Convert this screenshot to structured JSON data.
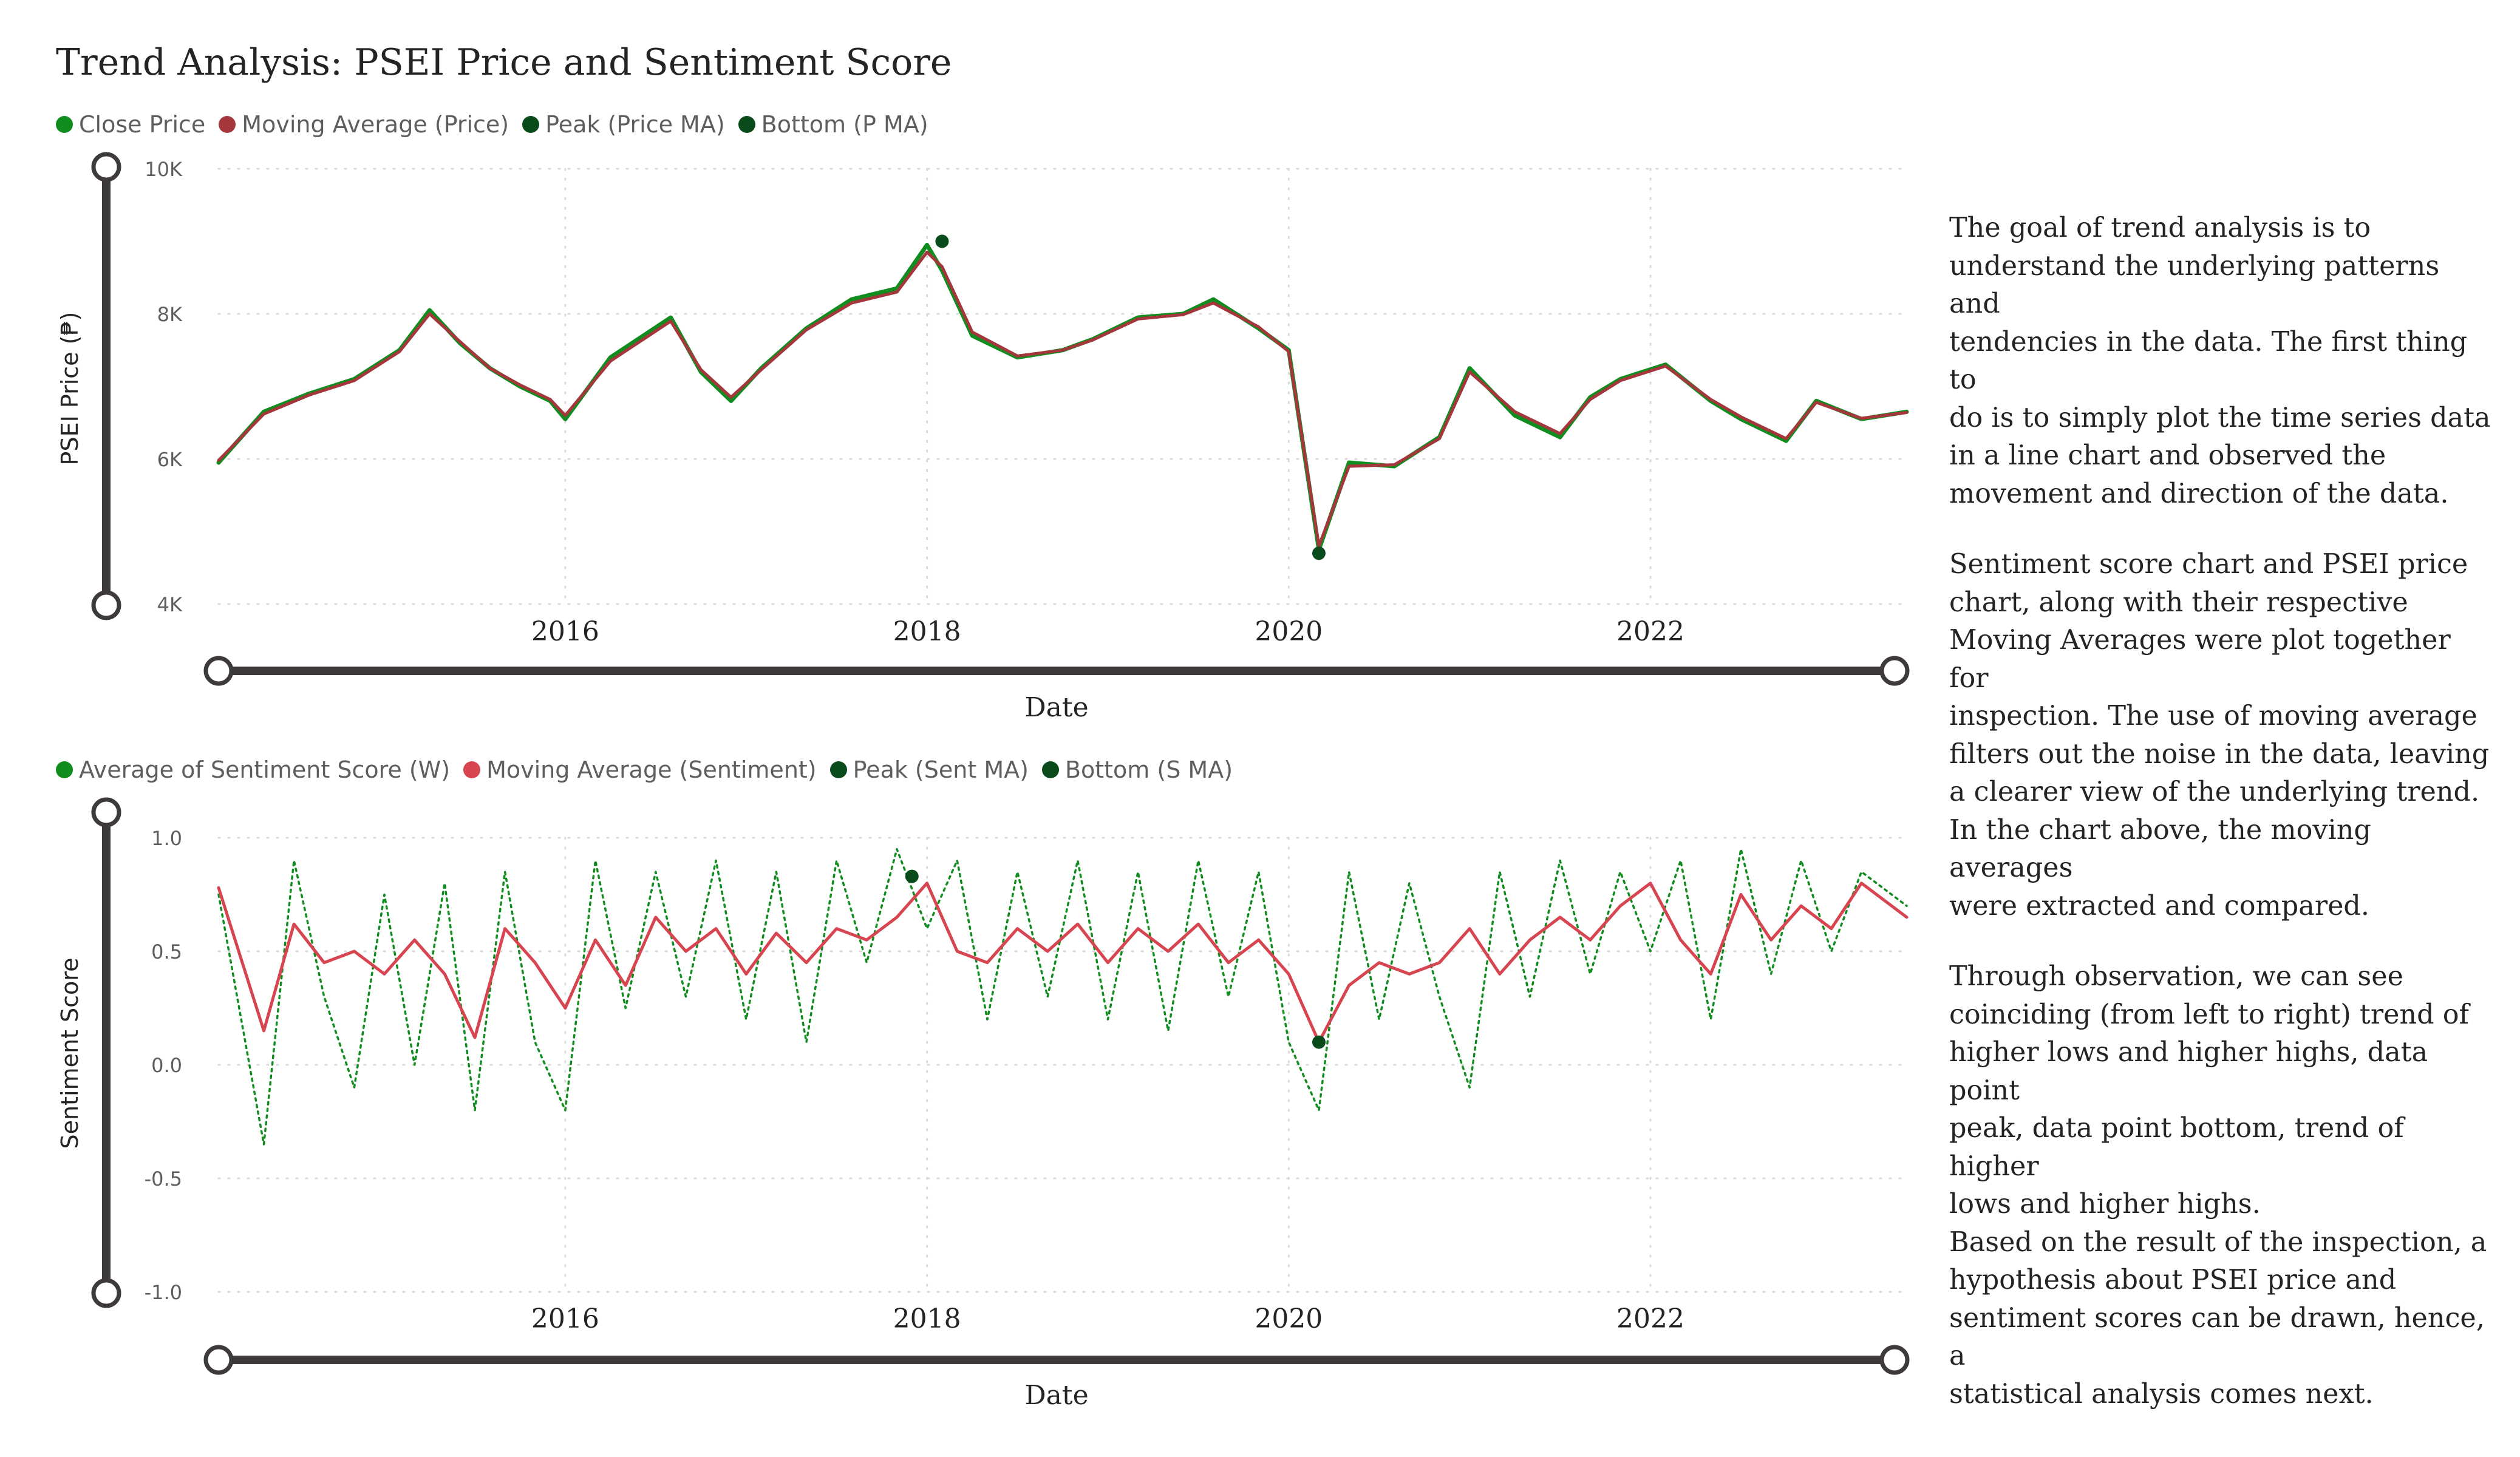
{
  "title": "Trend Analysis: PSEI Price and Sentiment Score",
  "colors": {
    "close_price": "#118d1f",
    "price_ma": "#a4363c",
    "peak": "#0a4b1c",
    "bottom": "#0a4b1c",
    "sentiment": "#118d1f",
    "sentiment_ma": "#d64550",
    "slider": "#3f3a3a"
  },
  "chart_data": [
    {
      "type": "line",
      "title": "",
      "legend": [
        "Close Price",
        "Moving Average (Price)",
        "Peak (Price MA)",
        "Bottom (P MA)"
      ],
      "legend_position": "top-left",
      "xlabel": "Date",
      "ylabel": "PSEI Price (₱)",
      "x_ticks": [
        "2016",
        "2018",
        "2020",
        "2022"
      ],
      "y_ticks": [
        "4K",
        "6K",
        "8K",
        "10K"
      ],
      "xlim": [
        "2014-02",
        "2023-06"
      ],
      "ylim": [
        4000,
        10000
      ],
      "grid": true,
      "series": [
        {
          "name": "Close Price",
          "style": "solid",
          "x": [
            "2014-02",
            "2014-05",
            "2014-08",
            "2014-11",
            "2015-02",
            "2015-04",
            "2015-06",
            "2015-08",
            "2015-10",
            "2015-12",
            "2016-01",
            "2016-04",
            "2016-08",
            "2016-10",
            "2016-12",
            "2017-02",
            "2017-05",
            "2017-08",
            "2017-11",
            "2018-01",
            "2018-02",
            "2018-04",
            "2018-07",
            "2018-10",
            "2018-12",
            "2019-03",
            "2019-06",
            "2019-08",
            "2019-11",
            "2020-01",
            "2020-03",
            "2020-05",
            "2020-08",
            "2020-11",
            "2021-01",
            "2021-04",
            "2021-07",
            "2021-09",
            "2021-11",
            "2022-02",
            "2022-05",
            "2022-07",
            "2022-10",
            "2022-12",
            "2023-03",
            "2023-06"
          ],
          "values": [
            5950,
            6650,
            6900,
            7100,
            7500,
            8050,
            7600,
            7250,
            7000,
            6800,
            6550,
            7400,
            7950,
            7200,
            6800,
            7250,
            7800,
            8200,
            8350,
            8950,
            8600,
            7700,
            7400,
            7500,
            7650,
            7950,
            8000,
            8200,
            7800,
            7500,
            4750,
            5950,
            5900,
            6300,
            7250,
            6600,
            6300,
            6850,
            7100,
            7300,
            6800,
            6550,
            6250,
            6800,
            6550,
            6650
          ]
        },
        {
          "name": "Moving Average (Price)",
          "style": "solid",
          "x": [
            "2014-02",
            "2014-05",
            "2014-08",
            "2014-11",
            "2015-02",
            "2015-04",
            "2015-06",
            "2015-08",
            "2015-10",
            "2015-12",
            "2016-01",
            "2016-04",
            "2016-08",
            "2016-10",
            "2016-12",
            "2017-02",
            "2017-05",
            "2017-08",
            "2017-11",
            "2018-01",
            "2018-02",
            "2018-04",
            "2018-07",
            "2018-10",
            "2018-12",
            "2019-03",
            "2019-06",
            "2019-08",
            "2019-11",
            "2020-01",
            "2020-03",
            "2020-05",
            "2020-08",
            "2020-11",
            "2021-01",
            "2021-04",
            "2021-07",
            "2021-09",
            "2021-11",
            "2022-02",
            "2022-05",
            "2022-07",
            "2022-10",
            "2022-12",
            "2023-03",
            "2023-06"
          ],
          "values": [
            5980,
            6620,
            6880,
            7080,
            7480,
            8000,
            7620,
            7250,
            7020,
            6820,
            6600,
            7350,
            7900,
            7230,
            6850,
            7230,
            7780,
            8150,
            8300,
            8850,
            8650,
            7750,
            7420,
            7500,
            7640,
            7930,
            7990,
            8150,
            7820,
            7480,
            4800,
            5900,
            5920,
            6280,
            7200,
            6650,
            6350,
            6820,
            7080,
            7280,
            6820,
            6580,
            6280,
            6780,
            6560,
            6640
          ]
        },
        {
          "name": "Peak (Price MA)",
          "style": "marker",
          "x": [
            "2018-02"
          ],
          "values": [
            9000
          ]
        },
        {
          "name": "Bottom (P MA)",
          "style": "marker",
          "x": [
            "2020-03"
          ],
          "values": [
            4700
          ]
        }
      ]
    },
    {
      "type": "line",
      "title": "",
      "legend": [
        "Average of Sentiment Score (W)",
        "Moving Average (Sentiment)",
        "Peak (Sent MA)",
        "Bottom (S MA)"
      ],
      "legend_position": "top-left",
      "xlabel": "Date",
      "ylabel": "Sentiment Score",
      "x_ticks": [
        "2016",
        "2018",
        "2020",
        "2022"
      ],
      "y_ticks": [
        "-1.0",
        "-0.5",
        "0.0",
        "0.5",
        "1.0"
      ],
      "xlim": [
        "2014-02",
        "2023-06"
      ],
      "ylim": [
        -1.0,
        1.0
      ],
      "grid": true,
      "series": [
        {
          "name": "Average of Sentiment Score (W)",
          "style": "dotted",
          "x": [
            "2014-02",
            "2014-05",
            "2014-07",
            "2014-09",
            "2014-11",
            "2015-01",
            "2015-03",
            "2015-05",
            "2015-07",
            "2015-09",
            "2015-11",
            "2016-01",
            "2016-03",
            "2016-05",
            "2016-07",
            "2016-09",
            "2016-11",
            "2017-01",
            "2017-03",
            "2017-05",
            "2017-07",
            "2017-09",
            "2017-11",
            "2018-01",
            "2018-03",
            "2018-05",
            "2018-07",
            "2018-09",
            "2018-11",
            "2019-01",
            "2019-03",
            "2019-05",
            "2019-07",
            "2019-09",
            "2019-11",
            "2020-01",
            "2020-03",
            "2020-05",
            "2020-07",
            "2020-09",
            "2020-11",
            "2021-01",
            "2021-03",
            "2021-05",
            "2021-07",
            "2021-09",
            "2021-11",
            "2022-01",
            "2022-03",
            "2022-05",
            "2022-07",
            "2022-09",
            "2022-11",
            "2023-01",
            "2023-03",
            "2023-06"
          ],
          "values": [
            0.75,
            -0.35,
            0.9,
            0.3,
            -0.1,
            0.75,
            0.0,
            0.8,
            -0.2,
            0.85,
            0.1,
            -0.2,
            0.9,
            0.25,
            0.85,
            0.3,
            0.9,
            0.2,
            0.85,
            0.1,
            0.9,
            0.45,
            0.95,
            0.6,
            0.9,
            0.2,
            0.85,
            0.3,
            0.9,
            0.2,
            0.85,
            0.15,
            0.9,
            0.3,
            0.85,
            0.1,
            -0.2,
            0.85,
            0.2,
            0.8,
            0.3,
            -0.1,
            0.85,
            0.3,
            0.9,
            0.4,
            0.85,
            0.5,
            0.9,
            0.2,
            0.95,
            0.4,
            0.9,
            0.5,
            0.85,
            0.7
          ]
        },
        {
          "name": "Moving Average (Sentiment)",
          "style": "solid",
          "x": [
            "2014-02",
            "2014-05",
            "2014-07",
            "2014-09",
            "2014-11",
            "2015-01",
            "2015-03",
            "2015-05",
            "2015-07",
            "2015-09",
            "2015-11",
            "2016-01",
            "2016-03",
            "2016-05",
            "2016-07",
            "2016-09",
            "2016-11",
            "2017-01",
            "2017-03",
            "2017-05",
            "2017-07",
            "2017-09",
            "2017-11",
            "2018-01",
            "2018-03",
            "2018-05",
            "2018-07",
            "2018-09",
            "2018-11",
            "2019-01",
            "2019-03",
            "2019-05",
            "2019-07",
            "2019-09",
            "2019-11",
            "2020-01",
            "2020-03",
            "2020-05",
            "2020-07",
            "2020-09",
            "2020-11",
            "2021-01",
            "2021-03",
            "2021-05",
            "2021-07",
            "2021-09",
            "2021-11",
            "2022-01",
            "2022-03",
            "2022-05",
            "2022-07",
            "2022-09",
            "2022-11",
            "2023-01",
            "2023-03",
            "2023-06"
          ],
          "values": [
            0.78,
            0.15,
            0.62,
            0.45,
            0.5,
            0.4,
            0.55,
            0.4,
            0.12,
            0.6,
            0.45,
            0.25,
            0.55,
            0.35,
            0.65,
            0.5,
            0.6,
            0.4,
            0.58,
            0.45,
            0.6,
            0.55,
            0.65,
            0.8,
            0.5,
            0.45,
            0.6,
            0.5,
            0.62,
            0.45,
            0.6,
            0.5,
            0.62,
            0.45,
            0.55,
            0.4,
            0.1,
            0.35,
            0.45,
            0.4,
            0.45,
            0.6,
            0.4,
            0.55,
            0.65,
            0.55,
            0.7,
            0.8,
            0.55,
            0.4,
            0.75,
            0.55,
            0.7,
            0.6,
            0.8,
            0.65
          ]
        },
        {
          "name": "Peak (Sent MA)",
          "style": "marker",
          "x": [
            "2017-12"
          ],
          "values": [
            0.83
          ]
        },
        {
          "name": "Bottom (S MA)",
          "style": "marker",
          "x": [
            "2020-03"
          ],
          "values": [
            0.1
          ]
        }
      ]
    }
  ],
  "commentary": [
    "The goal of trend analysis is to\nunderstand the underlying patterns and\ntendencies in the data. The first thing to\ndo is to simply plot the time series data\nin a line chart and observed the\nmovement and direction of the data.",
    "Sentiment score chart and PSEI price\nchart, along with their respective\nMoving Averages were plot together for\ninspection. The use of moving average\nfilters out the noise in the data, leaving\na clearer view of the underlying trend.\nIn the chart above, the moving averages\nwere extracted and compared.",
    "Through observation, we can see\ncoinciding (from left to right) trend of\nhigher lows and higher highs, data point\npeak, data point bottom, trend of higher\nlows and higher highs.",
    "Based on the result of the inspection, a\nhypothesis about PSEI price and\nsentiment scores can be drawn, hence, a\nstatistical analysis comes next."
  ]
}
